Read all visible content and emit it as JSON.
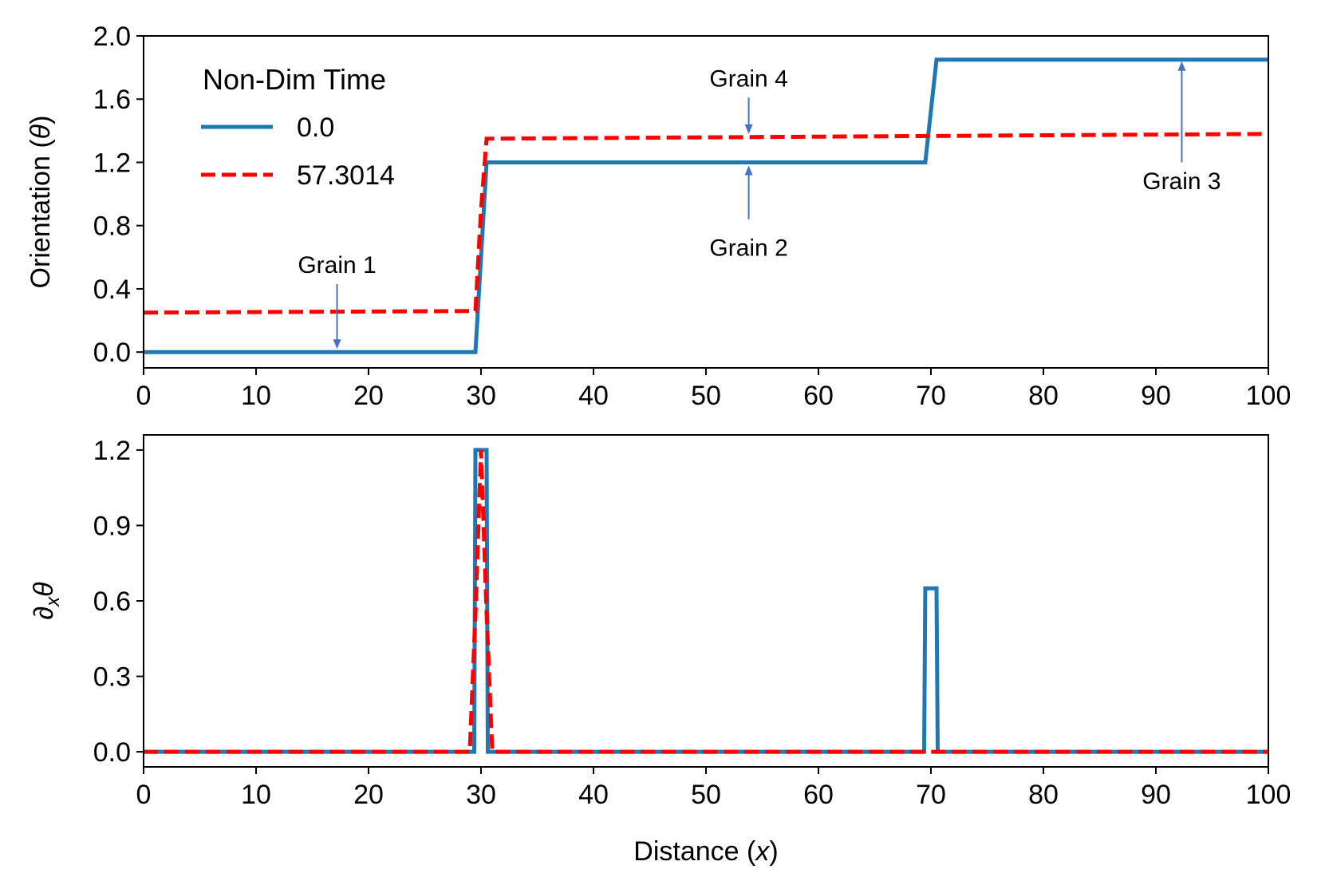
{
  "legend": {
    "title": "Non-Dim Time",
    "entries": [
      {
        "label": "0.0",
        "color": "#1f77b4",
        "style": "solid"
      },
      {
        "label": "57.3014",
        "color": "#ff0000",
        "style": "dashed"
      }
    ]
  },
  "chart_data": [
    {
      "type": "line",
      "panel": "top",
      "ylabel_prefix": "Orientation (",
      "ylabel_symbol": "θ",
      "ylabel_suffix": ")",
      "xlim": [
        0,
        100
      ],
      "ylim": [
        -0.1,
        2.0
      ],
      "xticks": [
        0,
        10,
        20,
        30,
        40,
        50,
        60,
        70,
        80,
        90,
        100
      ],
      "xtick_labels": [
        "0",
        "10",
        "20",
        "30",
        "40",
        "50",
        "60",
        "70",
        "80",
        "90",
        "100"
      ],
      "yticks": [
        0.0,
        0.4,
        0.8,
        1.2,
        1.6,
        2.0
      ],
      "ytick_labels": [
        "0.0",
        "0.4",
        "0.8",
        "1.2",
        "1.6",
        "2.0"
      ],
      "series": [
        {
          "name": "0.0",
          "color": "#1f77b4",
          "x": [
            0,
            29.5,
            30.5,
            69.5,
            70.5,
            100
          ],
          "y": [
            0,
            0,
            1.2,
            1.2,
            1.85,
            1.85
          ]
        },
        {
          "name": "57.3014",
          "color": "#ff0000",
          "x": [
            0,
            29.5,
            30.0,
            30.5,
            100
          ],
          "y": [
            0.25,
            0.26,
            0.9,
            1.35,
            1.38
          ]
        }
      ],
      "annotations": [
        {
          "text": "Grain 1",
          "text_x": 17.2,
          "text_y": 0.55,
          "arrow_from": [
            17.2,
            0.43
          ],
          "arrow_to": [
            17.2,
            0.02
          ]
        },
        {
          "text": "Grain 4",
          "text_x": 53.8,
          "text_y": 1.73,
          "arrow_from": [
            53.8,
            1.61
          ],
          "arrow_to": [
            53.8,
            1.38
          ]
        },
        {
          "text": "Grain 2",
          "text_x": 53.8,
          "text_y": 0.66,
          "arrow_from": [
            53.8,
            0.84
          ],
          "arrow_to": [
            53.8,
            1.18
          ]
        },
        {
          "text": "Grain 3",
          "text_x": 92.3,
          "text_y": 1.08,
          "arrow_from": [
            92.3,
            1.2
          ],
          "arrow_to": [
            92.3,
            1.84
          ]
        }
      ]
    },
    {
      "type": "line",
      "panel": "bottom",
      "ylabel_prefix": "∂",
      "ylabel_sub": "x",
      "ylabel_symbol": "θ",
      "xlabel_prefix": "Distance (",
      "xlabel_symbol": "x",
      "xlabel_suffix": ")",
      "xlim": [
        0,
        100
      ],
      "ylim": [
        -0.06,
        1.26
      ],
      "xticks": [
        0,
        10,
        20,
        30,
        40,
        50,
        60,
        70,
        80,
        90,
        100
      ],
      "xtick_labels": [
        "0",
        "10",
        "20",
        "30",
        "40",
        "50",
        "60",
        "70",
        "80",
        "90",
        "100"
      ],
      "yticks": [
        0.0,
        0.3,
        0.6,
        0.9,
        1.2
      ],
      "ytick_labels": [
        "0.0",
        "0.3",
        "0.6",
        "0.9",
        "1.2"
      ],
      "series": [
        {
          "name": "0.0",
          "color": "#1f77b4",
          "x": [
            0,
            29.4,
            29.5,
            30.5,
            30.6,
            69.4,
            69.5,
            70.5,
            70.6,
            100
          ],
          "y": [
            0,
            0,
            1.2,
            1.2,
            0,
            0,
            0.65,
            0.65,
            0,
            0
          ]
        },
        {
          "name": "57.3014",
          "color": "#ff0000",
          "x": [
            0,
            29.0,
            29.5,
            30.0,
            30.5,
            31.0,
            100
          ],
          "y": [
            0,
            0,
            0.55,
            1.2,
            0.55,
            0,
            0
          ]
        }
      ]
    }
  ]
}
